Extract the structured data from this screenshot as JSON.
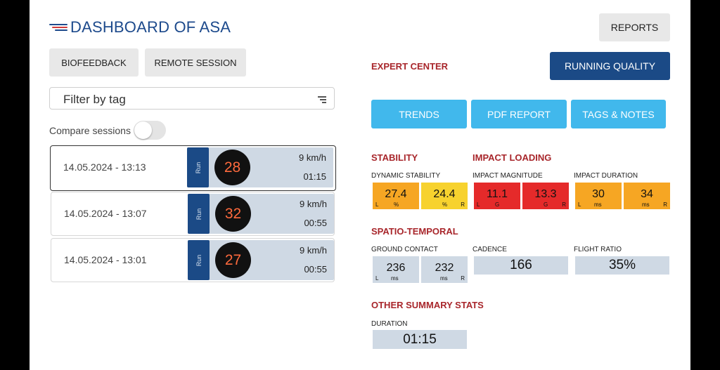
{
  "header": {
    "title": "DASHBOARD OF ASA",
    "reports_label": "REPORTS"
  },
  "mode_buttons": {
    "biofeedback": "BIOFEEDBACK",
    "remote": "REMOTE SESSION"
  },
  "filter": {
    "placeholder": "Filter by tag"
  },
  "compare": {
    "label": "Compare sessions",
    "enabled": false
  },
  "sessions": [
    {
      "date": "14.05.2024 - 13:13",
      "tag": "Run",
      "score": "28",
      "speed": "9  km/h",
      "duration": "01:15",
      "selected": true
    },
    {
      "date": "14.05.2024 - 13:07",
      "tag": "Run",
      "score": "32",
      "speed": "9  km/h",
      "duration": "00:55",
      "selected": false
    },
    {
      "date": "14.05.2024 - 13:01",
      "tag": "Run",
      "score": "27",
      "speed": "9  km/h",
      "duration": "00:55",
      "selected": false
    }
  ],
  "expert": {
    "title": "EXPERT CENTER",
    "running_quality": "RUNNING QUALITY",
    "trends": "TRENDS",
    "pdf": "PDF REPORT",
    "tags": "TAGS & NOTES"
  },
  "stability": {
    "title": "STABILITY",
    "dynamic": {
      "label": "DYNAMIC STABILITY",
      "left": "27.4",
      "left_unit": "%",
      "left_side": "L",
      "right": "24.4",
      "right_unit": "%",
      "right_side": "R"
    }
  },
  "impact": {
    "title": "IMPACT LOADING",
    "magnitude": {
      "label": "IMPACT MAGNITUDE",
      "left": "11.1",
      "left_unit": "G",
      "left_side": "L",
      "right": "13.3",
      "right_unit": "G",
      "right_side": "R"
    },
    "duration": {
      "label": "IMPACT DURATION",
      "left": "30",
      "left_unit": "ms",
      "left_side": "L",
      "right": "34",
      "right_unit": "ms",
      "right_side": "R"
    }
  },
  "spatio": {
    "title": "SPATIO-TEMPORAL",
    "ground_contact": {
      "label": "GROUND CONTACT",
      "left": "236",
      "left_unit": "ms",
      "left_side": "L",
      "right": "232",
      "right_unit": "ms",
      "right_side": "R"
    },
    "cadence": {
      "label": "CADENCE",
      "value": "166"
    },
    "flight_ratio": {
      "label": "FLIGHT RATIO",
      "value": "35%"
    }
  },
  "other": {
    "title": "OTHER SUMMARY STATS",
    "duration_label": "DURATION",
    "duration_value": "01:15"
  },
  "colors": {
    "navy": "#1b4a86",
    "accent_red": "#a8262b",
    "sky": "#41b8ec",
    "orange": "#f6a623",
    "yellow": "#f7d22e",
    "red": "#e52a2a",
    "slate": "#cfd9e4"
  }
}
